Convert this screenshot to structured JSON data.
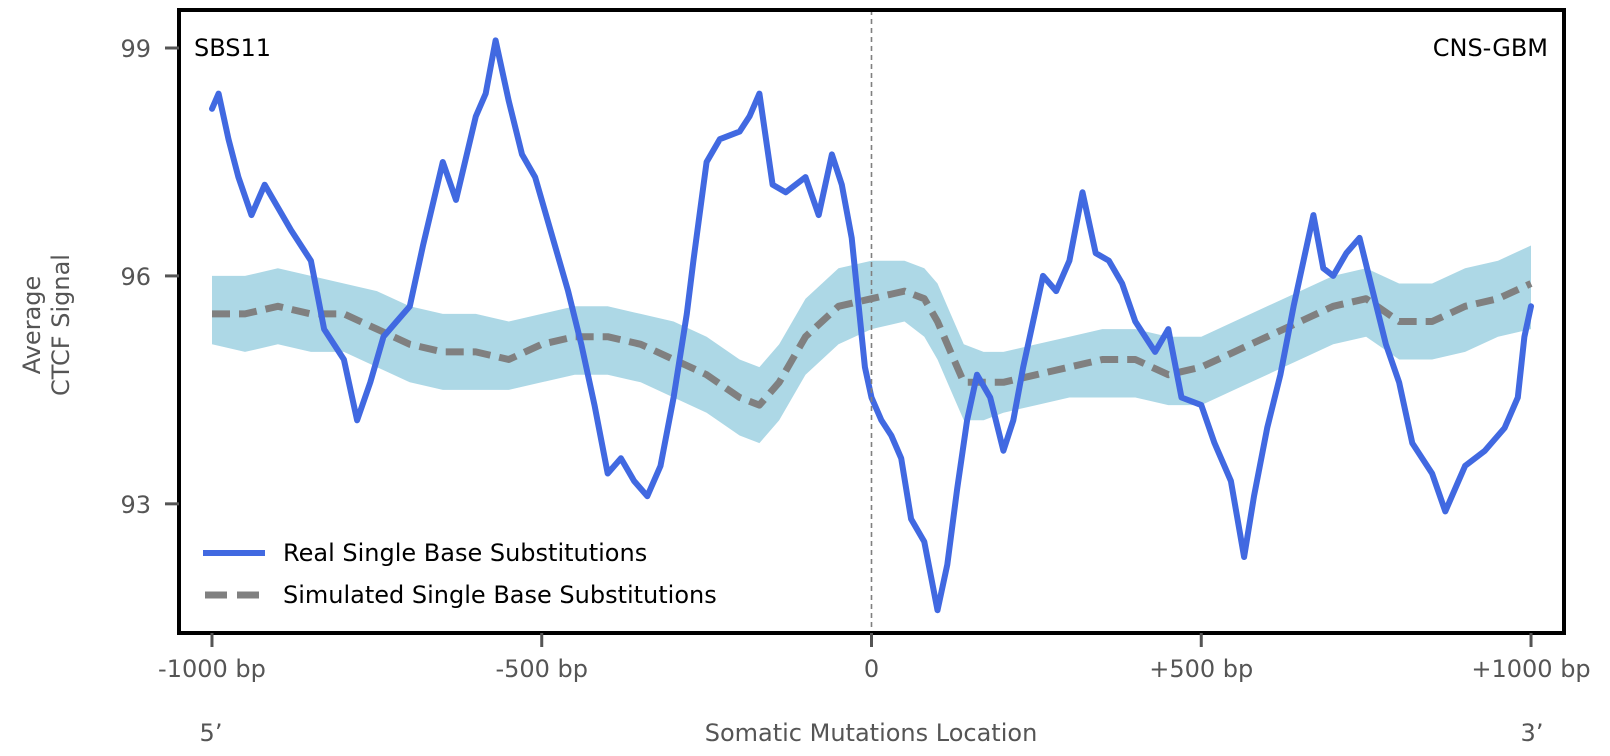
{
  "chart_data": {
    "type": "line",
    "signature_label": "SBS11",
    "cancer_type_label": "CNS-GBM",
    "xlabel": "Somatic Mutations Location",
    "ylabel_lines": [
      "Average",
      "CTCF Signal"
    ],
    "xlim": [
      -1050,
      1050
    ],
    "ylim": [
      91.3,
      99.5
    ],
    "x_ticks": [
      {
        "value": -1000,
        "label": "-1000 bp"
      },
      {
        "value": -500,
        "label": "-500 bp"
      },
      {
        "value": 0,
        "label": "0"
      },
      {
        "value": 500,
        "label": "+500 bp"
      },
      {
        "value": 1000,
        "label": "+1000 bp"
      }
    ],
    "y_ticks": [
      {
        "value": 93,
        "label": "93"
      },
      {
        "value": 96,
        "label": "96"
      },
      {
        "value": 99,
        "label": "99"
      }
    ],
    "end_labels": {
      "left": "5’",
      "right": "3’"
    },
    "center_line": {
      "x": 0,
      "style": "dashed"
    },
    "grid": false,
    "legend": {
      "placement": "bottom-left",
      "entries": [
        {
          "label": "Real Single Base Substitutions",
          "style": "solid",
          "color": "#4169e1"
        },
        {
          "label": "Simulated Single Base Substitutions",
          "style": "dashed",
          "color": "#808080"
        }
      ]
    },
    "colors": {
      "real": "#4169e1",
      "simulated": "#808080",
      "band": "#add8e6",
      "frame": "#000000",
      "center_line": "#808080"
    },
    "series": [
      {
        "name": "Real Single Base Substitutions",
        "x": [
          -1000,
          -990,
          -975,
          -960,
          -940,
          -920,
          -900,
          -880,
          -850,
          -830,
          -800,
          -780,
          -760,
          -740,
          -720,
          -700,
          -680,
          -650,
          -630,
          -600,
          -585,
          -570,
          -550,
          -530,
          -510,
          -480,
          -460,
          -440,
          -420,
          -400,
          -380,
          -360,
          -340,
          -320,
          -300,
          -280,
          -270,
          -250,
          -230,
          -200,
          -185,
          -170,
          -150,
          -130,
          -100,
          -80,
          -60,
          -45,
          -30,
          -10,
          0,
          15,
          30,
          45,
          60,
          80,
          100,
          115,
          130,
          145,
          160,
          180,
          200,
          215,
          230,
          260,
          280,
          300,
          320,
          340,
          360,
          380,
          400,
          430,
          450,
          470,
          500,
          520,
          545,
          565,
          580,
          600,
          620,
          640,
          655,
          670,
          685,
          700,
          720,
          740,
          760,
          780,
          800,
          820,
          850,
          870,
          890,
          900,
          930,
          960,
          980,
          990,
          1000
        ],
        "y": [
          98.2,
          98.4,
          97.8,
          97.3,
          96.8,
          97.2,
          96.9,
          96.6,
          96.2,
          95.3,
          94.9,
          94.1,
          94.6,
          95.2,
          95.4,
          95.6,
          96.4,
          97.5,
          97.0,
          98.1,
          98.4,
          99.1,
          98.3,
          97.6,
          97.3,
          96.4,
          95.8,
          95.1,
          94.3,
          93.4,
          93.6,
          93.3,
          93.1,
          93.5,
          94.4,
          95.5,
          96.2,
          97.5,
          97.8,
          97.9,
          98.1,
          98.4,
          97.2,
          97.1,
          97.3,
          96.8,
          97.6,
          97.2,
          96.5,
          94.8,
          94.4,
          94.1,
          93.9,
          93.6,
          92.8,
          92.5,
          91.6,
          92.2,
          93.2,
          94.1,
          94.7,
          94.4,
          93.7,
          94.1,
          94.8,
          96.0,
          95.8,
          96.2,
          97.1,
          96.3,
          96.2,
          95.9,
          95.4,
          95.0,
          95.3,
          94.4,
          94.3,
          93.8,
          93.3,
          92.3,
          93.1,
          94.0,
          94.7,
          95.6,
          96.2,
          96.8,
          96.1,
          96.0,
          96.3,
          96.5,
          95.8,
          95.1,
          94.6,
          93.8,
          93.4,
          92.9,
          93.3,
          93.5,
          93.7,
          94.0,
          94.4,
          95.2,
          95.6
        ]
      },
      {
        "name": "Simulated Single Base Substitutions",
        "x": [
          -1000,
          -950,
          -900,
          -850,
          -800,
          -750,
          -700,
          -650,
          -600,
          -550,
          -500,
          -450,
          -400,
          -350,
          -300,
          -250,
          -200,
          -170,
          -140,
          -100,
          -50,
          0,
          50,
          80,
          100,
          120,
          140,
          170,
          200,
          250,
          300,
          350,
          400,
          450,
          500,
          550,
          600,
          650,
          700,
          750,
          800,
          850,
          900,
          950,
          1000
        ],
        "y": [
          95.5,
          95.5,
          95.6,
          95.5,
          95.5,
          95.3,
          95.1,
          95.0,
          95.0,
          94.9,
          95.1,
          95.2,
          95.2,
          95.1,
          94.9,
          94.7,
          94.4,
          94.3,
          94.6,
          95.2,
          95.6,
          95.7,
          95.8,
          95.7,
          95.4,
          95.0,
          94.6,
          94.6,
          94.6,
          94.7,
          94.8,
          94.9,
          94.9,
          94.7,
          94.8,
          95.0,
          95.2,
          95.4,
          95.6,
          95.7,
          95.4,
          95.4,
          95.6,
          95.7,
          95.9
        ]
      }
    ],
    "confidence_band": {
      "name": "Simulated confidence interval",
      "x": [
        -1000,
        -950,
        -900,
        -850,
        -800,
        -750,
        -700,
        -650,
        -600,
        -550,
        -500,
        -450,
        -400,
        -350,
        -300,
        -250,
        -200,
        -170,
        -140,
        -100,
        -50,
        0,
        50,
        80,
        100,
        120,
        140,
        170,
        200,
        250,
        300,
        350,
        400,
        450,
        500,
        550,
        600,
        650,
        700,
        750,
        800,
        850,
        900,
        950,
        1000
      ],
      "lower": [
        95.1,
        95.0,
        95.1,
        95.0,
        95.0,
        94.8,
        94.6,
        94.5,
        94.5,
        94.5,
        94.6,
        94.7,
        94.7,
        94.6,
        94.4,
        94.2,
        93.9,
        93.8,
        94.1,
        94.7,
        95.1,
        95.3,
        95.4,
        95.2,
        94.9,
        94.5,
        94.1,
        94.1,
        94.2,
        94.3,
        94.4,
        94.4,
        94.4,
        94.3,
        94.3,
        94.5,
        94.7,
        94.9,
        95.1,
        95.2,
        94.9,
        94.9,
        95.0,
        95.2,
        95.3
      ],
      "upper": [
        96.0,
        96.0,
        96.1,
        96.0,
        95.9,
        95.8,
        95.6,
        95.5,
        95.5,
        95.4,
        95.5,
        95.6,
        95.6,
        95.5,
        95.4,
        95.2,
        94.9,
        94.8,
        95.1,
        95.7,
        96.1,
        96.2,
        96.2,
        96.1,
        95.9,
        95.5,
        95.1,
        95.0,
        95.0,
        95.1,
        95.2,
        95.3,
        95.3,
        95.2,
        95.2,
        95.4,
        95.6,
        95.8,
        96.0,
        96.1,
        95.9,
        95.9,
        96.1,
        96.2,
        96.4
      ]
    }
  }
}
